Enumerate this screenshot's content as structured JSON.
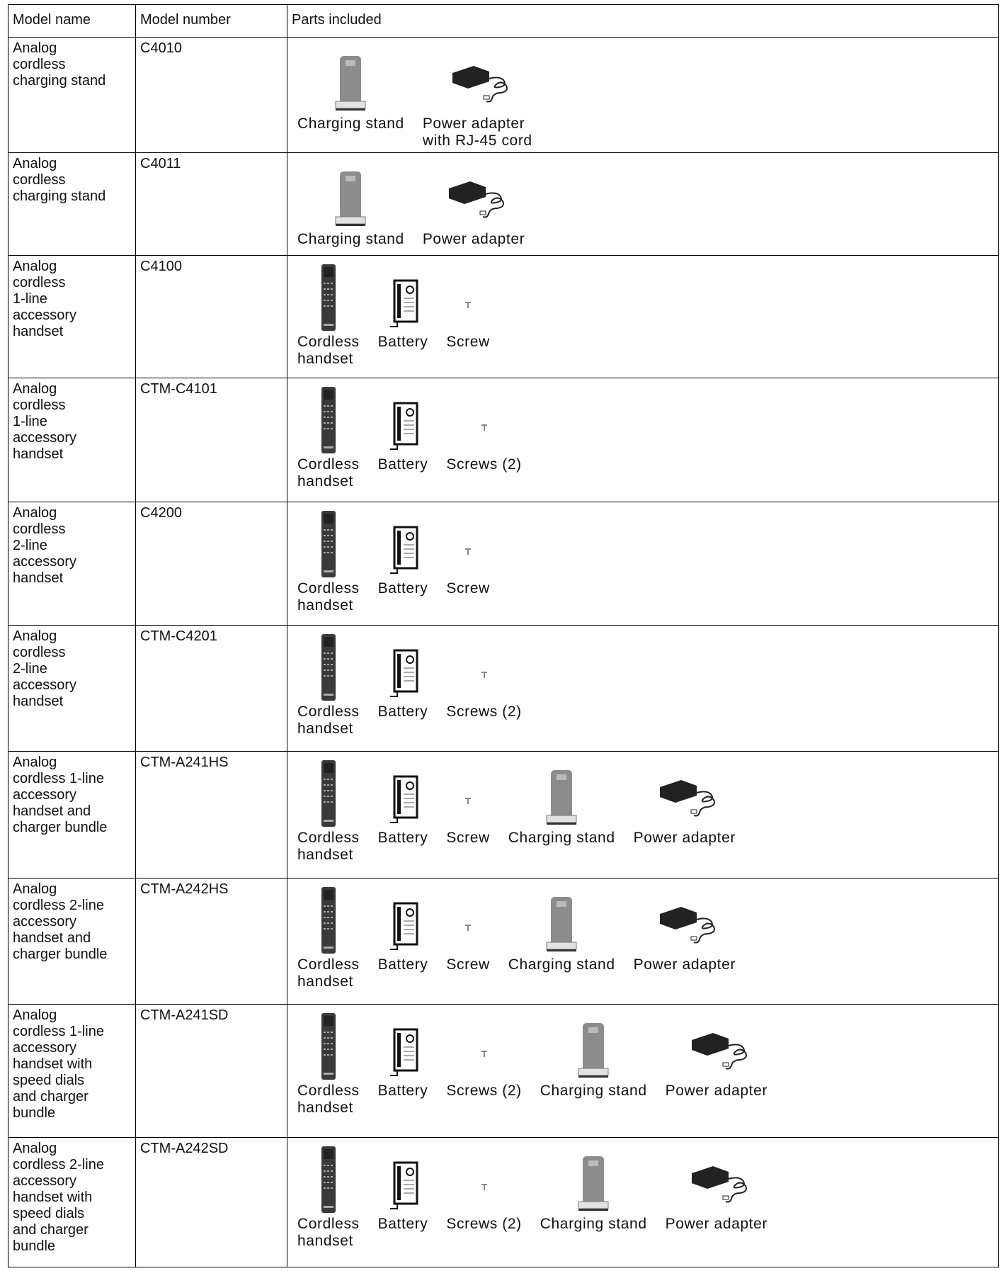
{
  "table": {
    "columns": [
      "Model name",
      "Model number",
      "Parts included"
    ],
    "rows": [
      {
        "name": "Analog\ncordless\ncharging stand",
        "number": "C4010",
        "parts": [
          "Charging stand",
          "Power adapter\nwith RJ-45 cord"
        ]
      },
      {
        "name": "Analog\ncordless\ncharging stand",
        "number": "C4011",
        "parts": [
          "Charging stand",
          "Power adapter"
        ]
      },
      {
        "name": "Analog\ncordless\n1-line\naccessory\nhandset",
        "number": "C4100",
        "parts": [
          "Cordless\nhandset",
          "Battery",
          "Screw"
        ]
      },
      {
        "name": "Analog\ncordless\n1-line\naccessory\nhandset",
        "number": "CTM-C4101",
        "parts": [
          "Cordless\nhandset",
          "Battery",
          "Screws (2)"
        ]
      },
      {
        "name": "Analog\ncordless\n2-line\naccessory\nhandset",
        "number": "C4200",
        "parts": [
          "Cordless\nhandset",
          "Battery",
          "Screw"
        ]
      },
      {
        "name": "Analog\ncordless\n2-line\naccessory\nhandset",
        "number": "CTM-C4201",
        "parts": [
          "Cordless\nhandset",
          "Battery",
          "Screws (2)"
        ]
      },
      {
        "name": "Analog\ncordless 1-line\naccessory\nhandset and\ncharger bundle",
        "number": "CTM-A241HS",
        "parts": [
          "Cordless\nhandset",
          "Battery",
          "Screw",
          "Charging stand",
          "Power adapter"
        ]
      },
      {
        "name": "Analog\ncordless 2-line\naccessory\nhandset and\ncharger bundle",
        "number": "CTM-A242HS",
        "parts": [
          "Cordless\nhandset",
          "Battery",
          "Screw",
          "Charging stand",
          "Power adapter"
        ]
      },
      {
        "name": "Analog\ncordless 1-line\naccessory\nhandset with\nspeed dials\nand charger\nbundle",
        "number": "CTM-A241SD",
        "parts": [
          "Cordless\nhandset",
          "Battery",
          "Screws (2)",
          "Charging stand",
          "Power adapter"
        ]
      },
      {
        "name": "Analog\ncordless 2-line\naccessory\nhandset with\nspeed dials\nand charger\nbundle",
        "number": "CTM-A242SD",
        "parts": [
          "Cordless\nhandset",
          "Battery",
          "Screws (2)",
          "Charging stand",
          "Power adapter"
        ]
      }
    ]
  }
}
